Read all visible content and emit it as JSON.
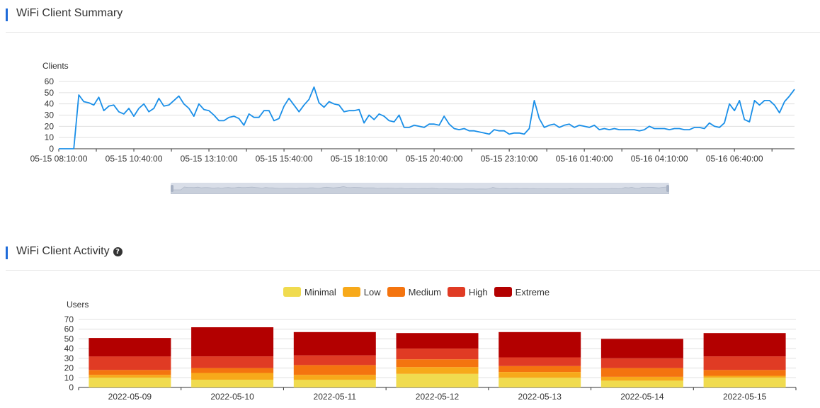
{
  "summary": {
    "title": "WiFi Client Summary"
  },
  "activity": {
    "title": "WiFi Client Activity",
    "help_icon": "question-circle-icon"
  },
  "colors": {
    "accent": "#1f6bd9",
    "line": "#1a8fe8",
    "minimal": "#f0db4f",
    "low": "#f7a91a",
    "medium": "#f4740f",
    "high": "#e03b24",
    "extreme": "#b30000"
  },
  "chart_data": [
    {
      "type": "line",
      "title": "",
      "ylabel": "Clients",
      "xlabel": "",
      "ylim": [
        0,
        60
      ],
      "yticks": [
        0,
        10,
        20,
        30,
        40,
        50,
        60
      ],
      "xtick_labels": [
        "05-15 08:10:00",
        "05-15 10:40:00",
        "05-15 13:10:00",
        "05-15 15:40:00",
        "05-15 18:10:00",
        "05-15 20:40:00",
        "05-15 23:10:00",
        "05-16 01:40:00",
        "05-16 04:10:00",
        "05-16 06:40:00"
      ],
      "interval_minutes": 10,
      "start": "05-15 08:10:00",
      "grid": true,
      "zoom_slider": "bottom",
      "series": [
        {
          "values": [
            0,
            0,
            0,
            0,
            48,
            42,
            41,
            39,
            46,
            34,
            38,
            39,
            33,
            31,
            36,
            29,
            36,
            40,
            33,
            36,
            45,
            38,
            39,
            43,
            47,
            40,
            36,
            29,
            40,
            35,
            34,
            30,
            25,
            25,
            28,
            29,
            27,
            21,
            31,
            28,
            28,
            34,
            34,
            25,
            27,
            38,
            45,
            39,
            33,
            39,
            44,
            55,
            41,
            37,
            42,
            40,
            39,
            33,
            34,
            34,
            35,
            23,
            30,
            26,
            31,
            29,
            25,
            24,
            30,
            19,
            19,
            21,
            20,
            19,
            22,
            22,
            21,
            29,
            22,
            18,
            17,
            18,
            16,
            16,
            15,
            14,
            13,
            17,
            16,
            16,
            13,
            14,
            14,
            13,
            18,
            43,
            27,
            19,
            21,
            22,
            19,
            21,
            22,
            19,
            21,
            20,
            19,
            21,
            17,
            18,
            17,
            18,
            17,
            17,
            17,
            17,
            16,
            17,
            20,
            18,
            18,
            18,
            17,
            18,
            18,
            17,
            17,
            19,
            19,
            18,
            23,
            20,
            19,
            23,
            40,
            34,
            43,
            26,
            24,
            43,
            39,
            43,
            43,
            39,
            32,
            42,
            47,
            53
          ]
        }
      ]
    },
    {
      "type": "bar",
      "stacked": true,
      "title": "",
      "ylabel": "Users",
      "xlabel": "",
      "ylim": [
        0,
        70
      ],
      "yticks": [
        0,
        10,
        20,
        30,
        40,
        50,
        60,
        70
      ],
      "grid": true,
      "legend_position": "top-center",
      "categories": [
        "2022-05-09",
        "2022-05-10",
        "2022-05-11",
        "2022-05-12",
        "2022-05-13",
        "2022-05-14",
        "2022-05-15"
      ],
      "series": [
        {
          "name": "Minimal",
          "values": [
            10,
            8,
            8,
            14,
            10,
            7,
            10
          ]
        },
        {
          "name": "Low",
          "values": [
            3,
            7,
            5,
            7,
            6,
            4,
            2
          ]
        },
        {
          "name": "Medium",
          "values": [
            5,
            5,
            10,
            8,
            6,
            9,
            6
          ]
        },
        {
          "name": "High",
          "values": [
            14,
            12,
            10,
            11,
            9,
            10,
            14
          ]
        },
        {
          "name": "Extreme",
          "values": [
            19,
            30,
            24,
            16,
            26,
            20,
            24
          ]
        }
      ]
    }
  ]
}
